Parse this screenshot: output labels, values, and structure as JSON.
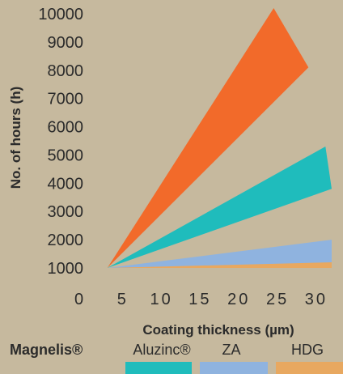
{
  "chart_data": {
    "type": "area",
    "xlabel": "Coating thickness (µm)",
    "ylabel": "No. of hours (h)",
    "xlim": [
      0,
      32
    ],
    "ylim": [
      0,
      10000
    ],
    "x_ticks": [
      0,
      5,
      10,
      15,
      20,
      25,
      30
    ],
    "y_ticks": [
      1000,
      2000,
      3000,
      4000,
      5000,
      6000,
      7000,
      8000,
      9000,
      10000
    ],
    "origin_label": "0",
    "grid": false,
    "legend_position": "bottom",
    "series": [
      {
        "name": "Magnelis®",
        "color": "#f26a2a",
        "legend_color": "#f26a2a",
        "legend_bold": true,
        "polygon": [
          [
            3,
            1000
          ],
          [
            24.5,
            10200
          ],
          [
            29,
            8100
          ]
        ]
      },
      {
        "name": "Aluzinc®",
        "color": "#1fbcbc",
        "legend_color": "#1fbcbc",
        "legend_bold": false,
        "polygon": [
          [
            3,
            1000
          ],
          [
            31.2,
            5300
          ],
          [
            32,
            3800
          ]
        ]
      },
      {
        "name": "ZA",
        "color": "#8fb3df",
        "legend_color": "#8fb3df",
        "legend_bold": false,
        "polygon": [
          [
            3,
            1000
          ],
          [
            32,
            2000
          ],
          [
            32,
            1150
          ]
        ]
      },
      {
        "name": "HDG",
        "color": "#e8a860",
        "legend_color": "#e8a860",
        "legend_bold": false,
        "polygon": [
          [
            3,
            1000
          ],
          [
            32,
            1200
          ],
          [
            32,
            1000
          ]
        ]
      }
    ]
  }
}
